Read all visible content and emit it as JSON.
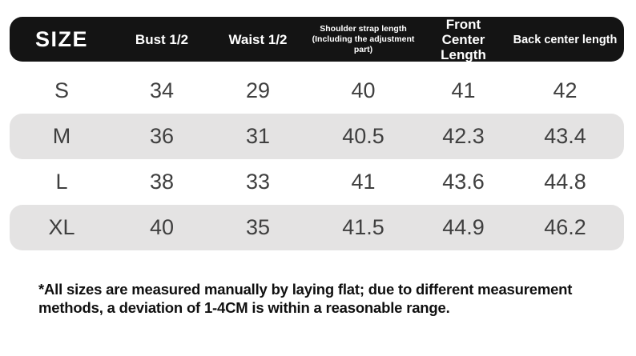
{
  "table": {
    "columns": [
      {
        "label": "SIZE"
      },
      {
        "label": "Bust 1/2"
      },
      {
        "label": "Waist 1/2"
      },
      {
        "label": "Shoulder strap length (Including the adjustment part)"
      },
      {
        "label": "Front Center Length"
      },
      {
        "label": "Back center length"
      }
    ],
    "rows": [
      {
        "size": "S",
        "values": [
          "34",
          "29",
          "40",
          "41",
          "42"
        ]
      },
      {
        "size": "M",
        "values": [
          "36",
          "31",
          "40.5",
          "42.3",
          "43.4"
        ]
      },
      {
        "size": "L",
        "values": [
          "38",
          "33",
          "41",
          "43.6",
          "44.8"
        ]
      },
      {
        "size": "XL",
        "values": [
          "40",
          "35",
          "41.5",
          "44.9",
          "46.2"
        ]
      }
    ]
  },
  "note": "*All sizes are measured manually by laying flat; due to different measurement methods, a deviation of 1-4CM is within a reasonable range.",
  "colors": {
    "header_bg": "#141414",
    "header_text": "#ffffff",
    "stripe_bg": "#e4e3e3",
    "cell_text": "#3f3f3f",
    "note_text": "#101010",
    "page_bg": "#ffffff"
  }
}
